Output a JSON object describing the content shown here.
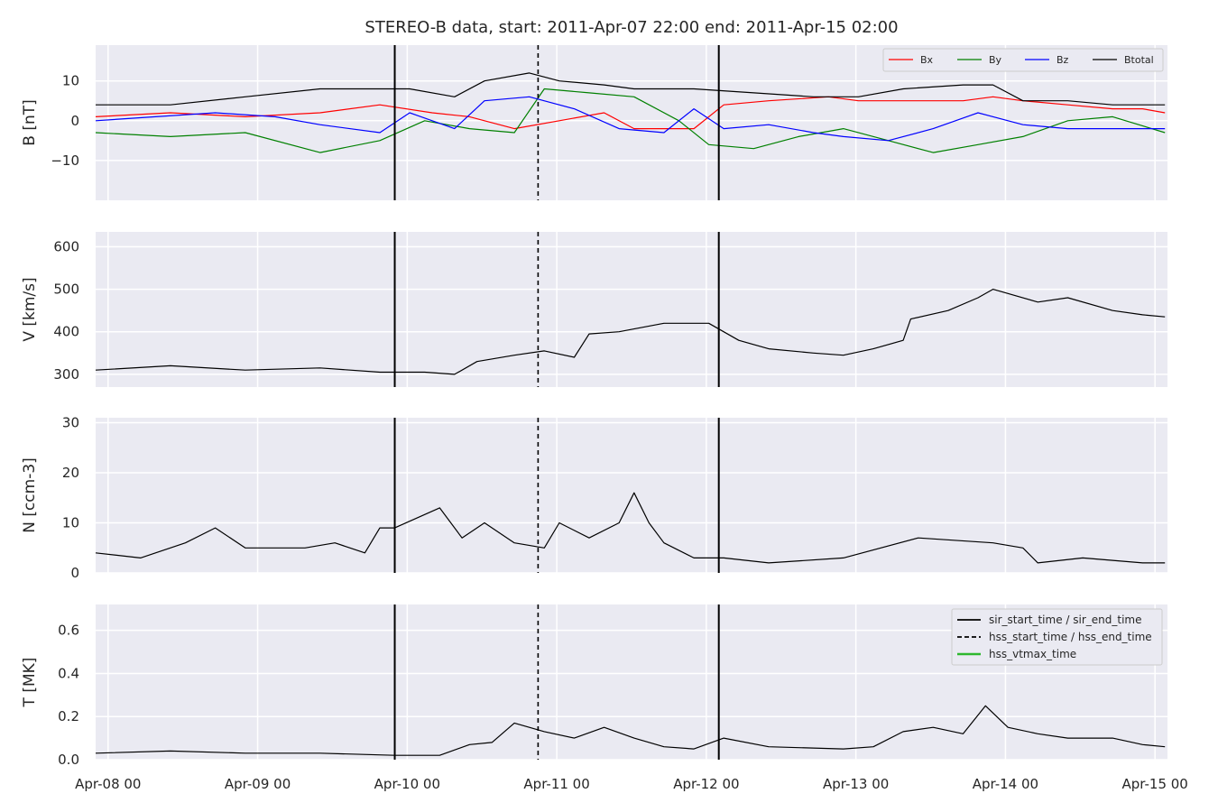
{
  "title": "STEREO-B data, start: 2011-Apr-07 22:00  end: 2011-Apr-15 02:00",
  "chart_data": {
    "type": "line",
    "x_range": [
      "2011-04-07T22:00",
      "2011-04-15T02:00"
    ],
    "x_ticks": [
      "Apr-08 00",
      "Apr-09 00",
      "Apr-10 00",
      "Apr-11 00",
      "Apr-12 00",
      "Apr-13 00",
      "Apr-14 00",
      "Apr-15 00"
    ],
    "grid": true,
    "event_lines": [
      {
        "time": "2011-04-09T22:00",
        "style": "solid"
      },
      {
        "time": "2011-04-10T21:00",
        "style": "dashed"
      },
      {
        "time": "2011-04-12T02:00",
        "style": "solid"
      }
    ],
    "panels": [
      {
        "id": "B",
        "ylabel": "B [nT]",
        "ylim": [
          -20,
          19
        ],
        "yticks": [
          "10",
          "0",
          "−10"
        ],
        "legend_position": "top-right",
        "legend": [
          {
            "label": "Bx",
            "color": "#ff0000"
          },
          {
            "label": "By",
            "color": "#008000"
          },
          {
            "label": "Bz",
            "color": "#0000ff"
          },
          {
            "label": "Btotal",
            "color": "#000000"
          }
        ],
        "series": [
          {
            "name": "Bx",
            "color": "#ff0000",
            "x_day": [
              0.0,
              0.5,
              1.0,
              1.5,
              1.9,
              2.25,
              2.5,
              2.8,
              3.1,
              3.4,
              3.6,
              4.0,
              4.2,
              4.5,
              4.9,
              5.1,
              5.5,
              5.8,
              6.0,
              6.2,
              6.5,
              6.8,
              7.0,
              7.15
            ],
            "y": [
              1,
              2,
              1,
              2,
              4,
              2,
              1,
              -2,
              0,
              2,
              -2,
              -2,
              4,
              5,
              6,
              5,
              5,
              5,
              6,
              5,
              4,
              3,
              3,
              2
            ]
          },
          {
            "name": "By",
            "color": "#008000",
            "x_day": [
              0.0,
              0.5,
              1.0,
              1.5,
              1.9,
              2.2,
              2.5,
              2.8,
              3.0,
              3.3,
              3.6,
              3.9,
              4.1,
              4.4,
              4.7,
              5.0,
              5.3,
              5.6,
              5.9,
              6.2,
              6.5,
              6.8,
              7.15
            ],
            "y": [
              -3,
              -4,
              -3,
              -8,
              -5,
              0,
              -2,
              -3,
              8,
              7,
              6,
              0,
              -6,
              -7,
              -4,
              -2,
              -5,
              -8,
              -6,
              -4,
              0,
              1,
              -3
            ]
          },
          {
            "name": "Bz",
            "color": "#0000ff",
            "x_day": [
              0.0,
              0.4,
              0.8,
              1.2,
              1.5,
              1.9,
              2.1,
              2.4,
              2.6,
              2.9,
              3.2,
              3.5,
              3.8,
              4.0,
              4.2,
              4.5,
              4.8,
              5.0,
              5.3,
              5.6,
              5.9,
              6.2,
              6.5,
              6.8,
              7.15
            ],
            "y": [
              0,
              1,
              2,
              1,
              -1,
              -3,
              2,
              -2,
              5,
              6,
              3,
              -2,
              -3,
              3,
              -2,
              -1,
              -3,
              -4,
              -5,
              -2,
              2,
              -1,
              -2,
              -2,
              -2
            ]
          },
          {
            "name": "Btotal",
            "color": "#000000",
            "x_day": [
              0.0,
              0.5,
              1.0,
              1.5,
              1.9,
              2.1,
              2.4,
              2.6,
              2.9,
              3.1,
              3.4,
              3.6,
              4.0,
              4.4,
              4.8,
              5.1,
              5.4,
              5.8,
              6.0,
              6.2,
              6.5,
              6.8,
              7.15
            ],
            "y": [
              4,
              4,
              6,
              8,
              8,
              8,
              6,
              10,
              12,
              10,
              9,
              8,
              8,
              7,
              6,
              6,
              8,
              9,
              9,
              5,
              5,
              4,
              4
            ]
          }
        ]
      },
      {
        "id": "V",
        "ylabel": "V [km/s]",
        "ylim": [
          270,
          635
        ],
        "yticks": [
          "600",
          "500",
          "400",
          "300"
        ],
        "series": [
          {
            "name": "V",
            "color": "#000000",
            "x_day": [
              0.0,
              0.5,
              1.0,
              1.5,
              1.9,
              2.2,
              2.4,
              2.55,
              2.8,
              3.0,
              3.2,
              3.3,
              3.5,
              3.8,
              4.1,
              4.3,
              4.5,
              4.8,
              5.0,
              5.2,
              5.4,
              5.45,
              5.7,
              5.9,
              6.0,
              6.3,
              6.5,
              6.8,
              7.0,
              7.15
            ],
            "y": [
              310,
              320,
              310,
              315,
              305,
              305,
              300,
              330,
              345,
              355,
              340,
              395,
              400,
              420,
              420,
              380,
              360,
              350,
              345,
              360,
              380,
              430,
              450,
              480,
              500,
              470,
              480,
              450,
              440,
              435
            ]
          }
        ]
      },
      {
        "id": "N",
        "ylabel": "N [ccm-3]",
        "ylim": [
          0,
          31
        ],
        "yticks": [
          "30",
          "20",
          "10",
          "0"
        ],
        "series": [
          {
            "name": "N",
            "color": "#000000",
            "x_day": [
              0.0,
              0.3,
              0.6,
              0.8,
              1.0,
              1.2,
              1.4,
              1.6,
              1.8,
              1.9,
              2.0,
              2.3,
              2.45,
              2.6,
              2.8,
              3.0,
              3.1,
              3.3,
              3.5,
              3.6,
              3.7,
              3.8,
              4.0,
              4.2,
              4.5,
              5.0,
              5.5,
              6.0,
              6.2,
              6.3,
              6.6,
              7.0,
              7.15
            ],
            "y": [
              4,
              3,
              6,
              9,
              5,
              5,
              5,
              6,
              4,
              9,
              9,
              13,
              7,
              10,
              6,
              5,
              10,
              7,
              10,
              16,
              10,
              6,
              3,
              3,
              2,
              3,
              7,
              6,
              5,
              2,
              3,
              2,
              2
            ]
          }
        ]
      },
      {
        "id": "T",
        "ylabel": "T [MK]",
        "ylim": [
          0,
          0.72
        ],
        "yticks": [
          "0.6",
          "0.4",
          "0.2",
          "0.0"
        ],
        "legend_position": "top-right",
        "legend": [
          {
            "label": "sir_start_time / sir_end_time",
            "style": "solid",
            "color": "#000000"
          },
          {
            "label": "hss_start_time / hss_end_time",
            "style": "dashed",
            "color": "#000000"
          },
          {
            "label": "hss_vtmax_time",
            "style": "solid",
            "color": "#2eb82e"
          }
        ],
        "series": [
          {
            "name": "T",
            "color": "#000000",
            "x_day": [
              0.0,
              0.5,
              1.0,
              1.5,
              2.0,
              2.3,
              2.5,
              2.65,
              2.8,
              3.0,
              3.2,
              3.4,
              3.6,
              3.8,
              4.0,
              4.2,
              4.5,
              5.0,
              5.2,
              5.4,
              5.6,
              5.8,
              5.95,
              6.1,
              6.3,
              6.5,
              6.8,
              7.0,
              7.15
            ],
            "y": [
              0.03,
              0.04,
              0.03,
              0.03,
              0.02,
              0.02,
              0.07,
              0.08,
              0.17,
              0.13,
              0.1,
              0.15,
              0.1,
              0.06,
              0.05,
              0.1,
              0.06,
              0.05,
              0.06,
              0.13,
              0.15,
              0.12,
              0.25,
              0.15,
              0.12,
              0.1,
              0.1,
              0.07,
              0.06
            ]
          }
        ]
      }
    ]
  }
}
